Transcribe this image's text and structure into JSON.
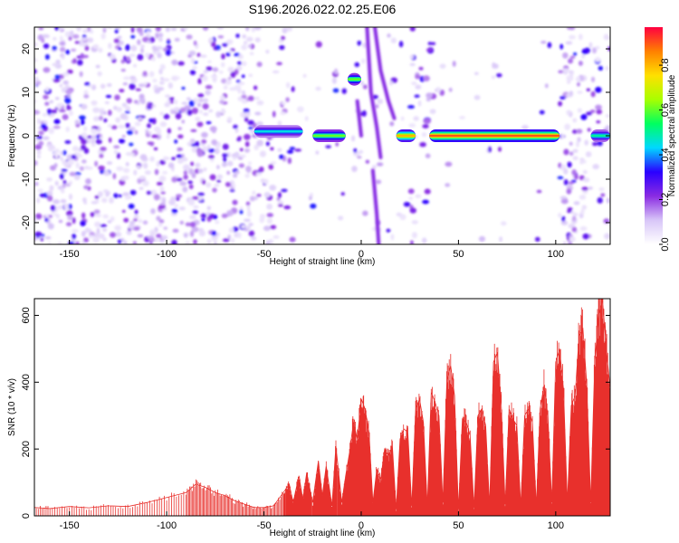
{
  "title": "S196.2026.022.02.25.E06",
  "chart_data": [
    {
      "type": "heatmap",
      "xlabel": "Height of straight line (km)",
      "ylabel": "Frequency (Hz)",
      "xlim": [
        -168,
        128
      ],
      "ylim": [
        -25,
        25
      ],
      "xticks": [
        -150,
        -100,
        -50,
        0,
        50,
        100
      ],
      "yticks": [
        -20,
        -10,
        0,
        10,
        20
      ],
      "colorbar": {
        "label": "Normalized spectral amplitude",
        "range": [
          0,
          0.97
        ],
        "ticks": [
          "0.0",
          "0.2",
          "0.4",
          "0.6",
          "0.8"
        ],
        "tick_values": [
          0,
          0.2,
          0.4,
          0.6,
          0.8
        ],
        "colors": [
          "#ffffff",
          "#d8c6f8",
          "#8a2be2",
          "#2a00ff",
          "#00d8ff",
          "#00ff60",
          "#a8ff00",
          "#ffe000",
          "#ff8000",
          "#ff0040"
        ]
      },
      "features": [
        {
          "name": "tone-band",
          "x_range": [
            35,
            102
          ],
          "frequency": 0,
          "amplitude": 0.9
        },
        {
          "name": "tone-band",
          "x_range": [
            18,
            28
          ],
          "frequency": 0,
          "amplitude": 0.8
        },
        {
          "name": "tone-band",
          "x_range": [
            -25,
            -8
          ],
          "frequency": 0,
          "amplitude": 0.6
        },
        {
          "name": "tone-band",
          "x_range": [
            -55,
            -30
          ],
          "frequency": 1,
          "amplitude": 0.45
        },
        {
          "name": "tone-band",
          "x_range": [
            118,
            128
          ],
          "frequency": 0,
          "amplitude": 0.5
        },
        {
          "name": "tone-spot",
          "x_range": [
            -7,
            0
          ],
          "frequency": 13,
          "amplitude": 0.6
        }
      ]
    },
    {
      "type": "line",
      "xlabel": "Height of straight line (km)",
      "ylabel": "SNR (10 * v/v)",
      "xlim": [
        -168,
        128
      ],
      "ylim": [
        0,
        650
      ],
      "xticks": [
        -150,
        -100,
        -50,
        0,
        50,
        100
      ],
      "yticks": [
        0,
        200,
        400,
        600
      ],
      "series": [
        {
          "color": "#e8302c",
          "x": [
            -168,
            -160,
            -150,
            -140,
            -130,
            -120,
            -110,
            -100,
            -90,
            -85,
            -80,
            -75,
            -70,
            -65,
            -60,
            -55,
            -50,
            -45,
            -40,
            -37,
            -35,
            -32,
            -30,
            -28,
            -25,
            -22,
            -20,
            -18,
            -15,
            -13,
            -10,
            -8,
            -6,
            -4,
            -2,
            0,
            2,
            4,
            6,
            8,
            10,
            12,
            14,
            16,
            18,
            20,
            22,
            24,
            26,
            28,
            30,
            32,
            34,
            36,
            38,
            40,
            42,
            44,
            46,
            48,
            50,
            52,
            54,
            56,
            58,
            60,
            62,
            64,
            66,
            68,
            70,
            72,
            74,
            76,
            78,
            80,
            82,
            84,
            86,
            88,
            90,
            92,
            94,
            96,
            98,
            100,
            102,
            104,
            106,
            108,
            110,
            112,
            114,
            116,
            118,
            120,
            122,
            124,
            126,
            128
          ],
          "y": [
            25,
            22,
            28,
            24,
            30,
            28,
            40,
            55,
            70,
            95,
            85,
            70,
            60,
            45,
            35,
            25,
            25,
            30,
            70,
            95,
            40,
            120,
            50,
            130,
            40,
            165,
            60,
            150,
            30,
            210,
            40,
            120,
            190,
            280,
            230,
            350,
            320,
            250,
            40,
            140,
            110,
            200,
            180,
            210,
            20,
            230,
            260,
            250,
            30,
            320,
            350,
            280,
            30,
            370,
            340,
            300,
            40,
            400,
            450,
            360,
            20,
            290,
            280,
            240,
            25,
            300,
            320,
            270,
            30,
            460,
            490,
            330,
            35,
            320,
            290,
            270,
            30,
            300,
            320,
            280,
            30,
            320,
            390,
            300,
            40,
            460,
            500,
            380,
            40,
            330,
            360,
            540,
            560,
            390,
            40,
            450,
            600,
            650,
            500,
            380
          ]
        }
      ]
    }
  ]
}
